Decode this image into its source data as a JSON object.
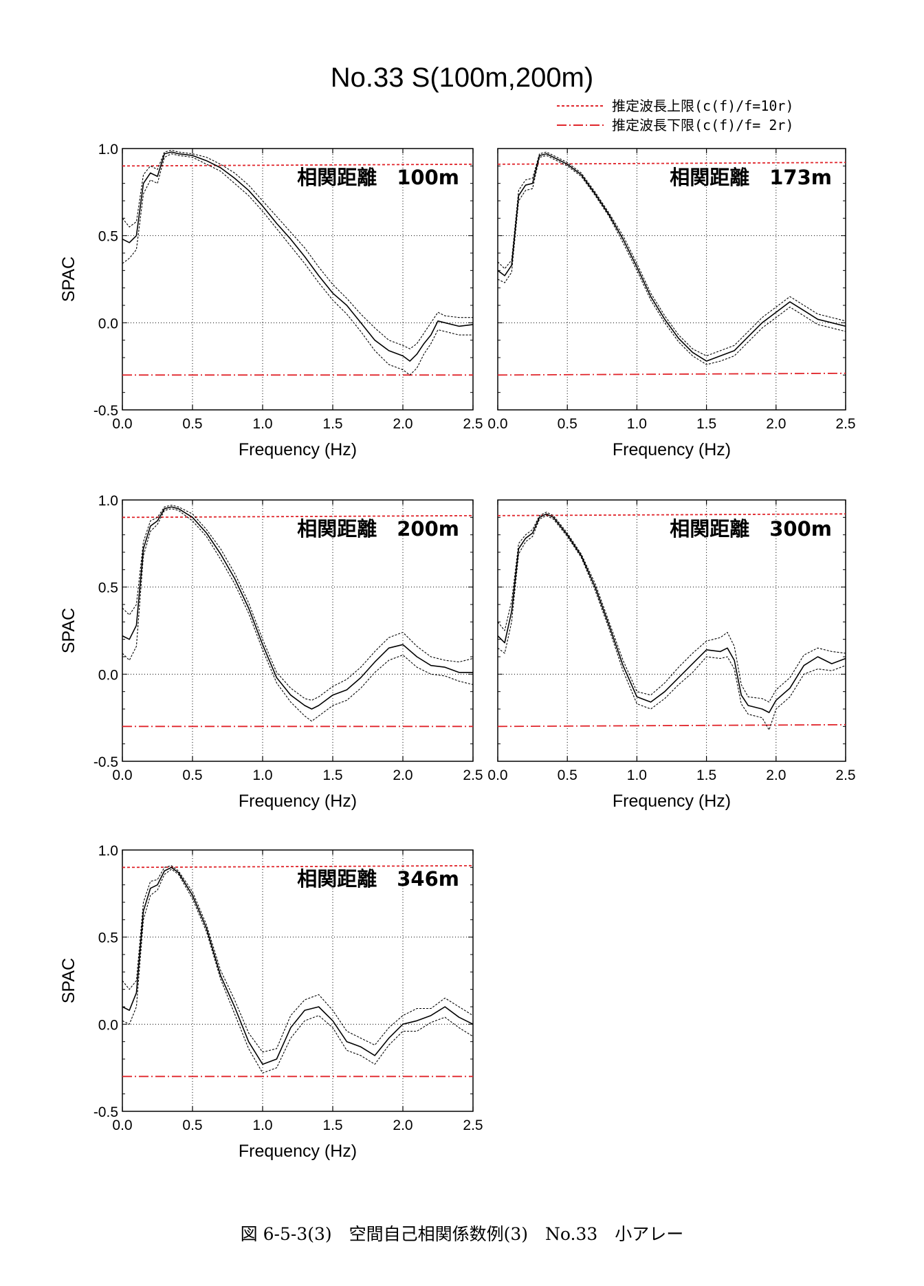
{
  "figure": {
    "title": "No.33  S(100m,200m)",
    "caption": "図 6-5-3(3)　空間自己相関係数例(3)　No.33　小アレー",
    "legend": [
      {
        "label": "推定波長上限(c(f)/f=10r)",
        "style": "dashed",
        "color": "#e0242a"
      },
      {
        "label": "推定波長下限(c(f)/f= 2r)",
        "style": "dashdot",
        "color": "#e0242a"
      }
    ],
    "colors": {
      "mean_line": "#000000",
      "band_line": "#000000",
      "reference_line": "#e0242a",
      "grid": "#000000"
    }
  },
  "chart_data": [
    {
      "type": "line",
      "title": "相関距離　100m",
      "xlabel": "Frequency (Hz)",
      "ylabel": "SPAC",
      "xlim": [
        0,
        2.5
      ],
      "ylim": [
        -0.5,
        1.0
      ],
      "xticks": [
        "0.0",
        "0.5",
        "1.0",
        "1.5",
        "2.0",
        "2.5"
      ],
      "yticks": [
        "-0.5",
        "0.0",
        "0.5",
        "1.0"
      ],
      "grid": true,
      "upper_limit": [
        [
          0.0,
          0.9
        ],
        [
          2.5,
          0.91
        ]
      ],
      "lower_limit": [
        [
          0.0,
          -0.3
        ],
        [
          2.5,
          -0.3
        ]
      ],
      "x": [
        0,
        0.05,
        0.1,
        0.15,
        0.2,
        0.25,
        0.3,
        0.35,
        0.4,
        0.5,
        0.6,
        0.7,
        0.8,
        0.9,
        1.0,
        1.1,
        1.2,
        1.3,
        1.4,
        1.5,
        1.6,
        1.7,
        1.8,
        1.9,
        2.0,
        2.05,
        2.1,
        2.15,
        2.2,
        2.25,
        2.3,
        2.4,
        2.5
      ],
      "series": [
        {
          "name": "",
          "role": "mean",
          "values": [
            0.48,
            0.46,
            0.5,
            0.8,
            0.86,
            0.84,
            0.97,
            0.98,
            0.97,
            0.96,
            0.93,
            0.89,
            0.83,
            0.76,
            0.67,
            0.57,
            0.48,
            0.38,
            0.27,
            0.17,
            0.1,
            0.0,
            -0.1,
            -0.16,
            -0.19,
            -0.22,
            -0.18,
            -0.12,
            -0.07,
            0.01,
            0.0,
            -0.02,
            -0.01
          ]
        },
        {
          "name": "",
          "role": "upper",
          "values": [
            0.6,
            0.55,
            0.58,
            0.85,
            0.9,
            0.88,
            0.98,
            0.99,
            0.98,
            0.97,
            0.95,
            0.91,
            0.86,
            0.79,
            0.7,
            0.61,
            0.52,
            0.43,
            0.32,
            0.22,
            0.14,
            0.05,
            -0.03,
            -0.1,
            -0.13,
            -0.15,
            -0.12,
            -0.06,
            0.0,
            0.06,
            0.04,
            0.03,
            0.03
          ]
        },
        {
          "name": "",
          "role": "lower",
          "values": [
            0.34,
            0.37,
            0.42,
            0.74,
            0.82,
            0.8,
            0.95,
            0.97,
            0.96,
            0.95,
            0.91,
            0.87,
            0.8,
            0.73,
            0.64,
            0.54,
            0.44,
            0.34,
            0.23,
            0.13,
            0.05,
            -0.05,
            -0.16,
            -0.24,
            -0.27,
            -0.3,
            -0.26,
            -0.18,
            -0.12,
            -0.04,
            -0.05,
            -0.07,
            -0.07
          ]
        }
      ]
    },
    {
      "type": "line",
      "title": "相関距離　173m",
      "xlabel": "Frequency (Hz)",
      "ylabel": "",
      "xlim": [
        0,
        2.5
      ],
      "ylim": [
        -0.5,
        1.0
      ],
      "xticks": [
        "0.0",
        "0.5",
        "1.0",
        "1.5",
        "2.0",
        "2.5"
      ],
      "yticks": [],
      "grid": true,
      "upper_limit": [
        [
          0.0,
          0.91
        ],
        [
          2.5,
          0.92
        ]
      ],
      "lower_limit": [
        [
          0.0,
          -0.3
        ],
        [
          2.5,
          -0.29
        ]
      ],
      "x": [
        0,
        0.05,
        0.1,
        0.15,
        0.2,
        0.25,
        0.3,
        0.35,
        0.4,
        0.5,
        0.6,
        0.7,
        0.8,
        0.9,
        1.0,
        1.1,
        1.2,
        1.3,
        1.4,
        1.5,
        1.6,
        1.7,
        1.8,
        1.9,
        2.0,
        2.1,
        2.2,
        2.3,
        2.4,
        2.5
      ],
      "series": [
        {
          "name": "",
          "role": "mean",
          "values": [
            0.3,
            0.27,
            0.33,
            0.73,
            0.79,
            0.8,
            0.96,
            0.97,
            0.95,
            0.91,
            0.85,
            0.74,
            0.62,
            0.48,
            0.32,
            0.15,
            0.02,
            -0.09,
            -0.17,
            -0.22,
            -0.19,
            -0.16,
            -0.08,
            0.0,
            0.06,
            0.12,
            0.07,
            0.02,
            0.0,
            -0.02
          ]
        },
        {
          "name": "",
          "role": "upper",
          "values": [
            0.35,
            0.31,
            0.36,
            0.76,
            0.82,
            0.83,
            0.97,
            0.98,
            0.96,
            0.92,
            0.86,
            0.75,
            0.63,
            0.5,
            0.34,
            0.17,
            0.04,
            -0.07,
            -0.15,
            -0.19,
            -0.16,
            -0.13,
            -0.05,
            0.03,
            0.09,
            0.15,
            0.1,
            0.05,
            0.03,
            0.01
          ]
        },
        {
          "name": "",
          "role": "lower",
          "values": [
            0.25,
            0.23,
            0.29,
            0.7,
            0.76,
            0.77,
            0.95,
            0.96,
            0.94,
            0.9,
            0.84,
            0.73,
            0.61,
            0.46,
            0.3,
            0.13,
            0.0,
            -0.11,
            -0.19,
            -0.24,
            -0.22,
            -0.19,
            -0.11,
            -0.03,
            0.03,
            0.09,
            0.04,
            -0.01,
            -0.03,
            -0.05
          ]
        }
      ]
    },
    {
      "type": "line",
      "title": "相関距離　200m",
      "xlabel": "Frequency (Hz)",
      "ylabel": "SPAC",
      "xlim": [
        0,
        2.5
      ],
      "ylim": [
        -0.5,
        1.0
      ],
      "xticks": [
        "0.0",
        "0.5",
        "1.0",
        "1.5",
        "2.0",
        "2.5"
      ],
      "yticks": [
        "-0.5",
        "0.0",
        "0.5",
        "1.0"
      ],
      "grid": true,
      "upper_limit": [
        [
          0.0,
          0.9
        ],
        [
          2.5,
          0.91
        ]
      ],
      "lower_limit": [
        [
          0.0,
          -0.3
        ],
        [
          2.5,
          -0.3
        ]
      ],
      "x": [
        0,
        0.05,
        0.1,
        0.15,
        0.2,
        0.25,
        0.3,
        0.35,
        0.4,
        0.5,
        0.6,
        0.7,
        0.8,
        0.9,
        1.0,
        1.1,
        1.2,
        1.3,
        1.35,
        1.4,
        1.5,
        1.6,
        1.7,
        1.8,
        1.9,
        2.0,
        2.1,
        2.2,
        2.3,
        2.4,
        2.5
      ],
      "series": [
        {
          "name": "",
          "role": "mean",
          "values": [
            0.22,
            0.2,
            0.28,
            0.72,
            0.85,
            0.88,
            0.95,
            0.96,
            0.95,
            0.9,
            0.81,
            0.69,
            0.55,
            0.38,
            0.17,
            -0.02,
            -0.12,
            -0.18,
            -0.2,
            -0.18,
            -0.12,
            -0.09,
            -0.02,
            0.07,
            0.15,
            0.17,
            0.1,
            0.05,
            0.04,
            0.01,
            0.01
          ]
        },
        {
          "name": "",
          "role": "upper",
          "values": [
            0.38,
            0.34,
            0.4,
            0.76,
            0.88,
            0.9,
            0.96,
            0.97,
            0.96,
            0.92,
            0.83,
            0.72,
            0.58,
            0.41,
            0.2,
            0.01,
            -0.08,
            -0.14,
            -0.15,
            -0.13,
            -0.07,
            -0.03,
            0.04,
            0.13,
            0.21,
            0.24,
            0.16,
            0.1,
            0.08,
            0.07,
            0.09
          ]
        },
        {
          "name": "",
          "role": "lower",
          "values": [
            0.12,
            0.08,
            0.16,
            0.68,
            0.82,
            0.86,
            0.94,
            0.95,
            0.94,
            0.88,
            0.79,
            0.66,
            0.52,
            0.35,
            0.14,
            -0.05,
            -0.16,
            -0.24,
            -0.27,
            -0.24,
            -0.18,
            -0.15,
            -0.08,
            0.01,
            0.08,
            0.11,
            0.04,
            0.0,
            -0.01,
            -0.04,
            -0.06
          ]
        }
      ]
    },
    {
      "type": "line",
      "title": "相関距離　300m",
      "xlabel": "Frequency (Hz)",
      "ylabel": "",
      "xlim": [
        0,
        2.5
      ],
      "ylim": [
        -0.5,
        1.0
      ],
      "xticks": [
        "0.0",
        "0.5",
        "1.0",
        "1.5",
        "2.0",
        "2.5"
      ],
      "yticks": [],
      "grid": true,
      "upper_limit": [
        [
          0.0,
          0.91
        ],
        [
          2.5,
          0.92
        ]
      ],
      "lower_limit": [
        [
          0.0,
          -0.3
        ],
        [
          2.5,
          -0.29
        ]
      ],
      "x": [
        0,
        0.05,
        0.1,
        0.15,
        0.2,
        0.25,
        0.3,
        0.35,
        0.4,
        0.5,
        0.6,
        0.7,
        0.8,
        0.9,
        1.0,
        1.1,
        1.2,
        1.3,
        1.4,
        1.5,
        1.6,
        1.65,
        1.7,
        1.75,
        1.8,
        1.9,
        1.95,
        2.0,
        2.1,
        2.2,
        2.3,
        2.4,
        2.5
      ],
      "series": [
        {
          "name": "",
          "role": "mean",
          "values": [
            0.22,
            0.18,
            0.36,
            0.72,
            0.78,
            0.81,
            0.9,
            0.92,
            0.9,
            0.8,
            0.68,
            0.5,
            0.28,
            0.05,
            -0.13,
            -0.16,
            -0.1,
            -0.02,
            0.06,
            0.14,
            0.13,
            0.15,
            0.08,
            -0.12,
            -0.18,
            -0.2,
            -0.22,
            -0.15,
            -0.08,
            0.05,
            0.1,
            0.06,
            0.09
          ]
        },
        {
          "name": "",
          "role": "upper",
          "values": [
            0.3,
            0.25,
            0.42,
            0.75,
            0.8,
            0.83,
            0.91,
            0.93,
            0.91,
            0.81,
            0.69,
            0.52,
            0.3,
            0.08,
            -0.1,
            -0.12,
            -0.05,
            0.04,
            0.12,
            0.19,
            0.21,
            0.24,
            0.16,
            -0.06,
            -0.13,
            -0.14,
            -0.16,
            -0.09,
            -0.02,
            0.11,
            0.15,
            0.13,
            0.12
          ]
        },
        {
          "name": "",
          "role": "lower",
          "values": [
            0.15,
            0.12,
            0.3,
            0.69,
            0.76,
            0.79,
            0.89,
            0.91,
            0.89,
            0.79,
            0.67,
            0.48,
            0.26,
            0.02,
            -0.17,
            -0.2,
            -0.14,
            -0.06,
            0.01,
            0.1,
            0.09,
            0.1,
            0.03,
            -0.17,
            -0.23,
            -0.25,
            -0.32,
            -0.2,
            -0.13,
            0.0,
            0.03,
            0.02,
            0.05
          ]
        }
      ]
    },
    {
      "type": "line",
      "title": "相関距離　346m",
      "xlabel": "Frequency (Hz)",
      "ylabel": "SPAC",
      "xlim": [
        0,
        2.5
      ],
      "ylim": [
        -0.5,
        1.0
      ],
      "xticks": [
        "0.0",
        "0.5",
        "1.0",
        "1.5",
        "2.0",
        "2.5"
      ],
      "yticks": [
        "-0.5",
        "0.0",
        "0.5",
        "1.0"
      ],
      "grid": true,
      "upper_limit": [
        [
          0.0,
          0.9
        ],
        [
          2.5,
          0.91
        ]
      ],
      "lower_limit": [
        [
          0.0,
          -0.3
        ],
        [
          2.5,
          -0.3
        ]
      ],
      "x": [
        0,
        0.05,
        0.1,
        0.15,
        0.2,
        0.25,
        0.3,
        0.35,
        0.4,
        0.5,
        0.6,
        0.7,
        0.8,
        0.9,
        1.0,
        1.1,
        1.2,
        1.3,
        1.4,
        1.5,
        1.6,
        1.7,
        1.8,
        1.9,
        2.0,
        2.1,
        2.2,
        2.3,
        2.4,
        2.5
      ],
      "series": [
        {
          "name": "",
          "role": "mean",
          "values": [
            0.1,
            0.08,
            0.18,
            0.65,
            0.78,
            0.8,
            0.88,
            0.9,
            0.87,
            0.74,
            0.55,
            0.28,
            0.1,
            -0.1,
            -0.23,
            -0.2,
            -0.02,
            0.08,
            0.1,
            0.02,
            -0.1,
            -0.13,
            -0.18,
            -0.08,
            0.0,
            0.02,
            0.05,
            0.1,
            0.04,
            0.0
          ]
        },
        {
          "name": "",
          "role": "upper",
          "values": [
            0.25,
            0.2,
            0.25,
            0.7,
            0.82,
            0.83,
            0.9,
            0.91,
            0.88,
            0.76,
            0.57,
            0.31,
            0.14,
            -0.05,
            -0.16,
            -0.14,
            0.05,
            0.14,
            0.17,
            0.08,
            -0.04,
            -0.08,
            -0.12,
            -0.02,
            0.05,
            0.09,
            0.09,
            0.15,
            0.1,
            0.05
          ]
        },
        {
          "name": "",
          "role": "lower",
          "values": [
            0.02,
            0.0,
            0.1,
            0.6,
            0.74,
            0.77,
            0.86,
            0.89,
            0.86,
            0.72,
            0.53,
            0.26,
            0.06,
            -0.14,
            -0.28,
            -0.25,
            -0.08,
            0.02,
            0.05,
            -0.02,
            -0.15,
            -0.18,
            -0.23,
            -0.12,
            -0.04,
            -0.04,
            0.01,
            0.04,
            -0.02,
            -0.07
          ]
        }
      ]
    }
  ]
}
